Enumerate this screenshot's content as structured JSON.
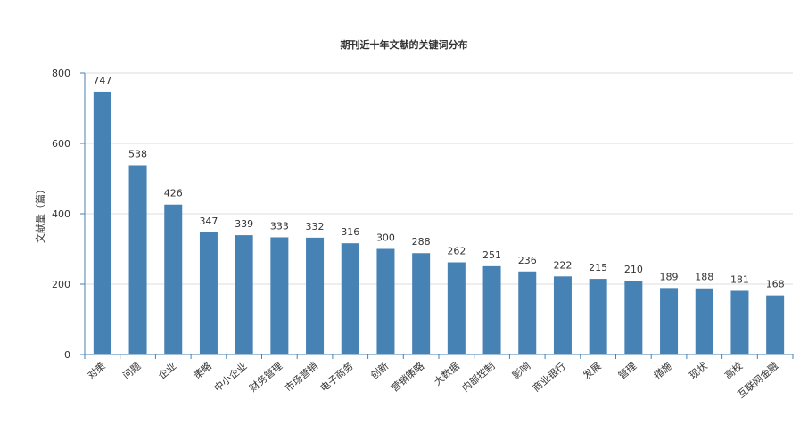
{
  "chart_data": {
    "type": "bar",
    "title": "期刊近十年文献的关键词分布",
    "xlabel": "",
    "ylabel": "文献量（篇）",
    "ylim": [
      0,
      800
    ],
    "yticks": [
      0,
      200,
      400,
      600,
      800
    ],
    "grid": true,
    "color": "#4682b4",
    "categories": [
      "对策",
      "问题",
      "企业",
      "策略",
      "中小企业",
      "财务管理",
      "市场营销",
      "电子商务",
      "创新",
      "营销策略",
      "大数据",
      "内部控制",
      "影响",
      "商业银行",
      "发展",
      "管理",
      "措施",
      "现状",
      "高校",
      "互联网金融"
    ],
    "values": [
      747,
      538,
      426,
      347,
      339,
      333,
      332,
      316,
      300,
      288,
      262,
      251,
      236,
      222,
      215,
      210,
      189,
      188,
      181,
      168
    ]
  }
}
